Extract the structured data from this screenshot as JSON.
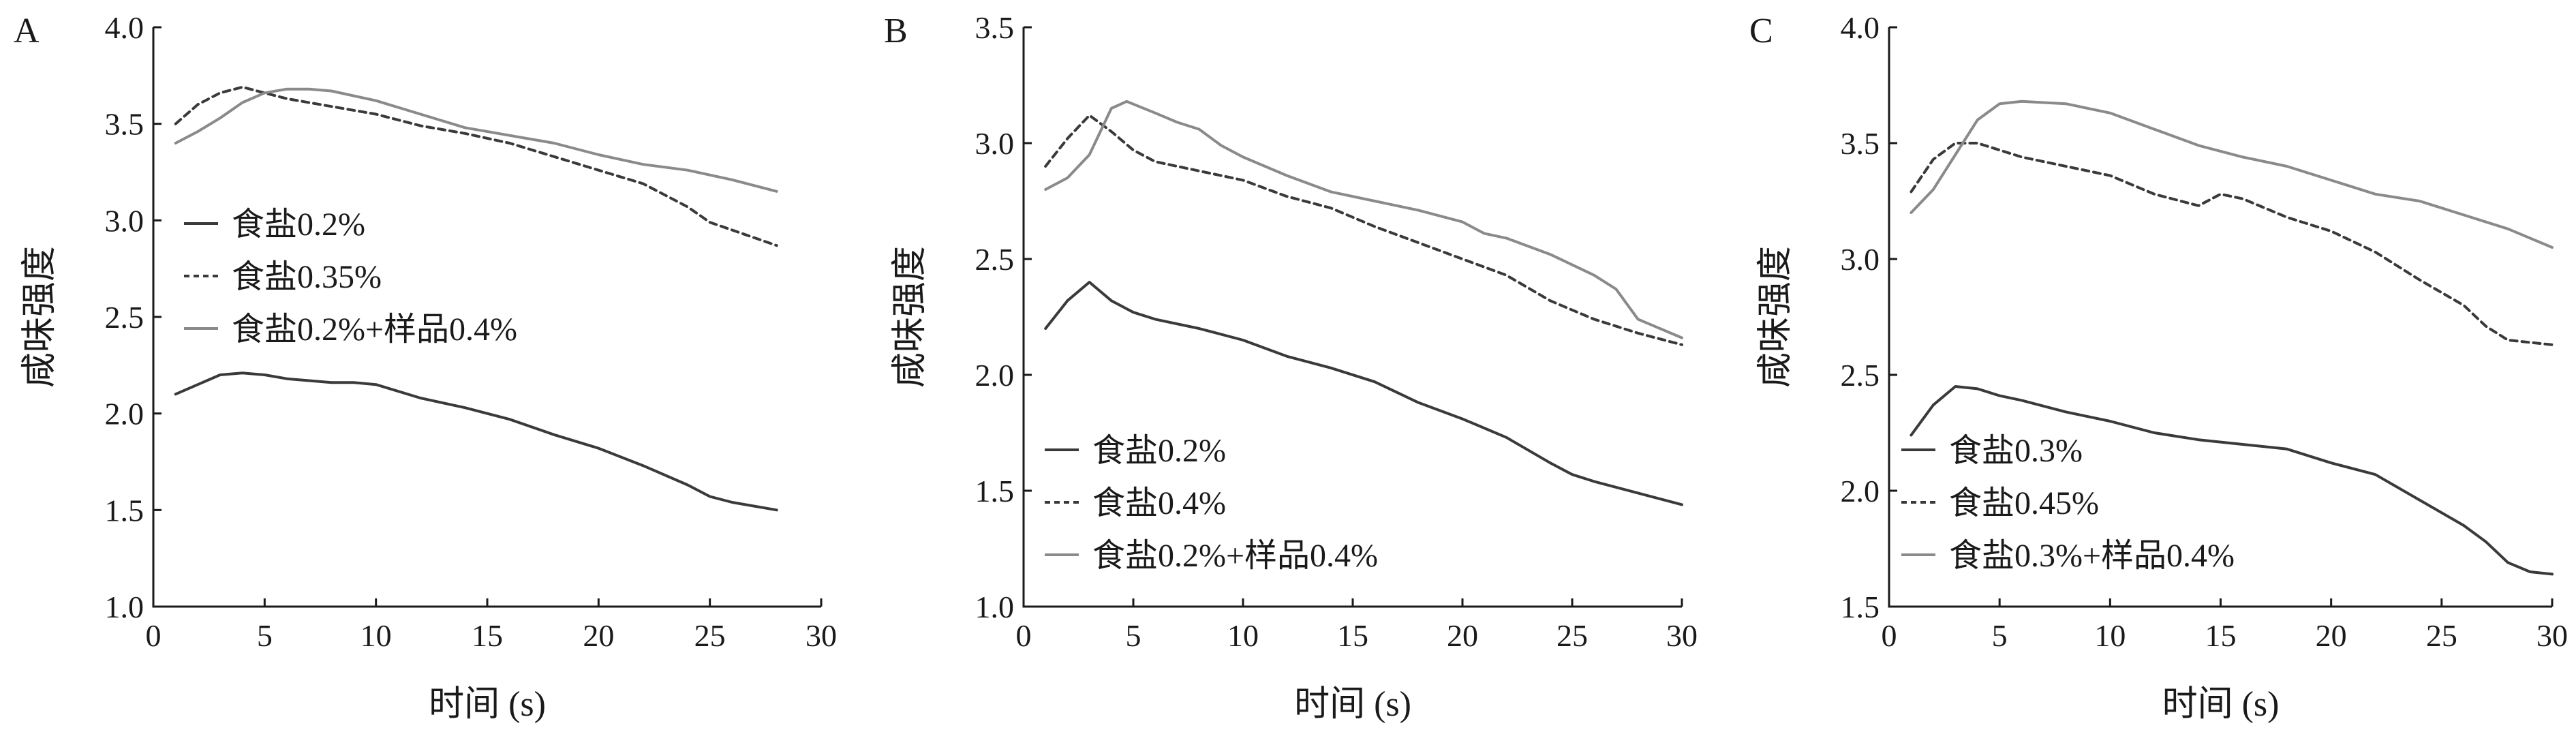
{
  "chart_data": [
    {
      "panel": "A",
      "type": "line",
      "xlabel": "时间 (s)",
      "ylabel": "咸味强度",
      "xlim": [
        0,
        30
      ],
      "ylim": [
        1.0,
        4.0
      ],
      "xticks": [
        "0",
        "5",
        "10",
        "15",
        "20",
        "25",
        "30"
      ],
      "yticks": [
        "1.0",
        "1.5",
        "2.0",
        "2.5",
        "3.0",
        "3.5",
        "4.0"
      ],
      "legend_position": "left",
      "series": [
        {
          "name": "食盐0.2%",
          "style": "solid",
          "color": "#3a3a3a",
          "x": [
            1,
            2,
            3,
            4,
            5,
            6,
            7,
            8,
            9,
            10,
            12,
            14,
            16,
            18,
            20,
            22,
            24,
            25,
            26,
            28
          ],
          "y": [
            2.1,
            2.15,
            2.2,
            2.21,
            2.2,
            2.18,
            2.17,
            2.16,
            2.16,
            2.15,
            2.08,
            2.03,
            1.97,
            1.89,
            1.82,
            1.73,
            1.63,
            1.57,
            1.54,
            1.5
          ]
        },
        {
          "name": "食盐0.35%",
          "style": "dashed",
          "color": "#3a3a3a",
          "x": [
            1,
            2,
            3,
            4,
            5,
            6,
            8,
            10,
            12,
            14,
            16,
            18,
            20,
            22,
            24,
            25,
            26,
            28
          ],
          "y": [
            3.5,
            3.6,
            3.66,
            3.69,
            3.66,
            3.63,
            3.59,
            3.55,
            3.49,
            3.45,
            3.4,
            3.33,
            3.26,
            3.19,
            3.07,
            2.99,
            2.95,
            2.87
          ]
        },
        {
          "name": "食盐0.2%+样品0.4%",
          "style": "solid",
          "color": "#8a8a8a",
          "x": [
            1,
            2,
            3,
            4,
            5,
            6,
            7,
            8,
            10,
            12,
            14,
            16,
            18,
            20,
            22,
            24,
            26,
            28
          ],
          "y": [
            3.4,
            3.46,
            3.53,
            3.61,
            3.66,
            3.68,
            3.68,
            3.67,
            3.62,
            3.55,
            3.48,
            3.44,
            3.4,
            3.34,
            3.29,
            3.26,
            3.21,
            3.15
          ]
        }
      ]
    },
    {
      "panel": "B",
      "type": "line",
      "xlabel": "时间 (s)",
      "ylabel": "咸味强度",
      "xlim": [
        0,
        30
      ],
      "ylim": [
        1.0,
        3.5
      ],
      "xticks": [
        "0",
        "5",
        "10",
        "15",
        "20",
        "25",
        "30"
      ],
      "yticks": [
        "1.0",
        "1.5",
        "2.0",
        "2.5",
        "3.0",
        "3.5"
      ],
      "legend_position": "bottom-left",
      "series": [
        {
          "name": "食盐0.2%",
          "style": "solid",
          "color": "#3a3a3a",
          "x": [
            1,
            2,
            3,
            4,
            5,
            6,
            8,
            10,
            12,
            14,
            16,
            18,
            20,
            22,
            24,
            25,
            26,
            28,
            30
          ],
          "y": [
            2.2,
            2.32,
            2.4,
            2.32,
            2.27,
            2.24,
            2.2,
            2.15,
            2.08,
            2.03,
            1.97,
            1.88,
            1.81,
            1.73,
            1.62,
            1.57,
            1.54,
            1.49,
            1.44
          ]
        },
        {
          "name": "食盐0.4%",
          "style": "dashed",
          "color": "#3a3a3a",
          "x": [
            1,
            2,
            3,
            4,
            5,
            6,
            8,
            10,
            12,
            14,
            16,
            18,
            20,
            22,
            24,
            26,
            28,
            30
          ],
          "y": [
            2.9,
            3.02,
            3.12,
            3.05,
            2.97,
            2.92,
            2.88,
            2.84,
            2.77,
            2.72,
            2.64,
            2.57,
            2.5,
            2.43,
            2.32,
            2.24,
            2.18,
            2.13
          ]
        },
        {
          "name": "食盐0.2%+样品0.4%",
          "style": "solid",
          "color": "#8a8a8a",
          "x": [
            1,
            2,
            3,
            4,
            4.7,
            6,
            7,
            8,
            9,
            10,
            12,
            14,
            16,
            18,
            20,
            21,
            22,
            24,
            26,
            27,
            28,
            30
          ],
          "y": [
            2.8,
            2.85,
            2.95,
            3.15,
            3.18,
            3.13,
            3.09,
            3.06,
            2.99,
            2.94,
            2.86,
            2.79,
            2.75,
            2.71,
            2.66,
            2.61,
            2.59,
            2.52,
            2.43,
            2.37,
            2.24,
            2.16
          ]
        }
      ]
    },
    {
      "panel": "C",
      "type": "line",
      "xlabel": "时间 (s)",
      "ylabel": "咸味强度",
      "xlim": [
        0,
        30
      ],
      "ylim": [
        1.5,
        4.0
      ],
      "xticks": [
        "0",
        "5",
        "10",
        "15",
        "20",
        "25",
        "30"
      ],
      "yticks": [
        "1.5",
        "2.0",
        "2.5",
        "3.0",
        "3.5",
        "4.0"
      ],
      "legend_position": "bottom-left",
      "series": [
        {
          "name": "食盐0.3%",
          "style": "solid",
          "color": "#3a3a3a",
          "x": [
            1,
            2,
            3,
            4,
            5,
            6,
            8,
            10,
            12,
            14,
            16,
            18,
            20,
            22,
            24,
            26,
            27,
            28,
            29,
            30
          ],
          "y": [
            2.24,
            2.37,
            2.45,
            2.44,
            2.41,
            2.39,
            2.34,
            2.3,
            2.25,
            2.22,
            2.2,
            2.18,
            2.12,
            2.07,
            1.96,
            1.85,
            1.78,
            1.69,
            1.65,
            1.64
          ]
        },
        {
          "name": "食盐0.45%",
          "style": "dashed",
          "color": "#3a3a3a",
          "x": [
            1,
            2,
            3,
            4,
            5,
            6,
            8,
            10,
            12,
            14,
            15,
            16,
            18,
            20,
            22,
            24,
            26,
            27,
            28,
            29,
            30
          ],
          "y": [
            3.29,
            3.43,
            3.5,
            3.5,
            3.47,
            3.44,
            3.4,
            3.36,
            3.28,
            3.23,
            3.28,
            3.26,
            3.18,
            3.12,
            3.03,
            2.91,
            2.8,
            2.71,
            2.65,
            2.64,
            2.63
          ]
        },
        {
          "name": "食盐0.3%+样品0.4%",
          "style": "solid",
          "color": "#8a8a8a",
          "x": [
            1,
            2,
            3,
            4,
            5,
            6,
            8,
            10,
            12,
            14,
            16,
            18,
            20,
            22,
            24,
            26,
            28,
            30
          ],
          "y": [
            3.2,
            3.3,
            3.45,
            3.6,
            3.67,
            3.68,
            3.67,
            3.63,
            3.56,
            3.49,
            3.44,
            3.4,
            3.34,
            3.28,
            3.25,
            3.19,
            3.13,
            3.05
          ]
        }
      ]
    }
  ]
}
